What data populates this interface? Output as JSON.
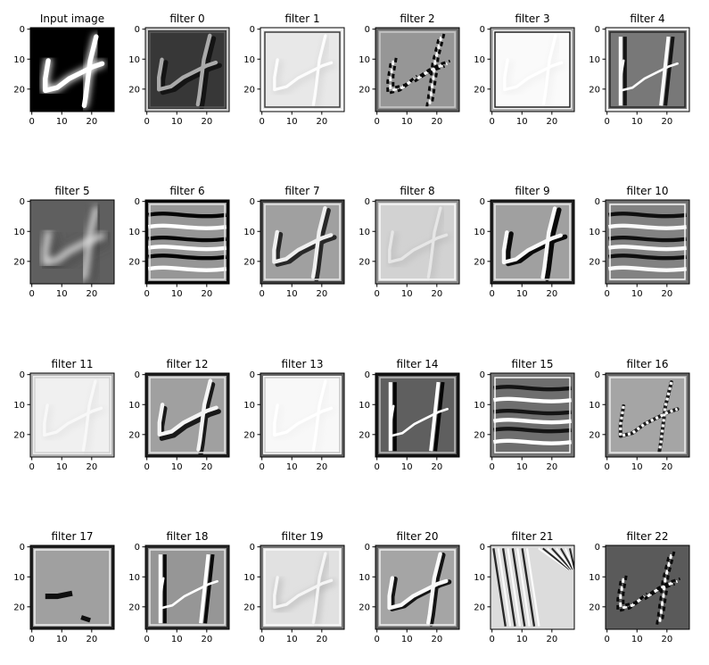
{
  "chart_data": {
    "type": "heatmap",
    "colormap": "gray",
    "grid": false,
    "image_size": [
      28,
      28
    ],
    "xlim": [
      0,
      28
    ],
    "ylim": [
      28,
      0
    ],
    "x_ticks": [
      "0",
      "10",
      "20"
    ],
    "y_ticks": [
      "0",
      "10",
      "20"
    ],
    "panels": [
      {
        "title": "Input image"
      },
      {
        "title": "filter 0"
      },
      {
        "title": "filter 1"
      },
      {
        "title": "filter 2"
      },
      {
        "title": "filter 3"
      },
      {
        "title": "filter 4"
      },
      {
        "title": "filter 5"
      },
      {
        "title": "filter 6"
      },
      {
        "title": "filter 7"
      },
      {
        "title": "filter 8"
      },
      {
        "title": "filter 9"
      },
      {
        "title": "filter 10"
      },
      {
        "title": "filter 11"
      },
      {
        "title": "filter 12"
      },
      {
        "title": "filter 13"
      },
      {
        "title": "filter 14"
      },
      {
        "title": "filter 15"
      },
      {
        "title": "filter 16"
      },
      {
        "title": "filter 17"
      },
      {
        "title": "filter 18"
      },
      {
        "title": "filter 19"
      },
      {
        "title": "filter 20"
      },
      {
        "title": "filter 21"
      },
      {
        "title": "filter 22"
      }
    ]
  }
}
